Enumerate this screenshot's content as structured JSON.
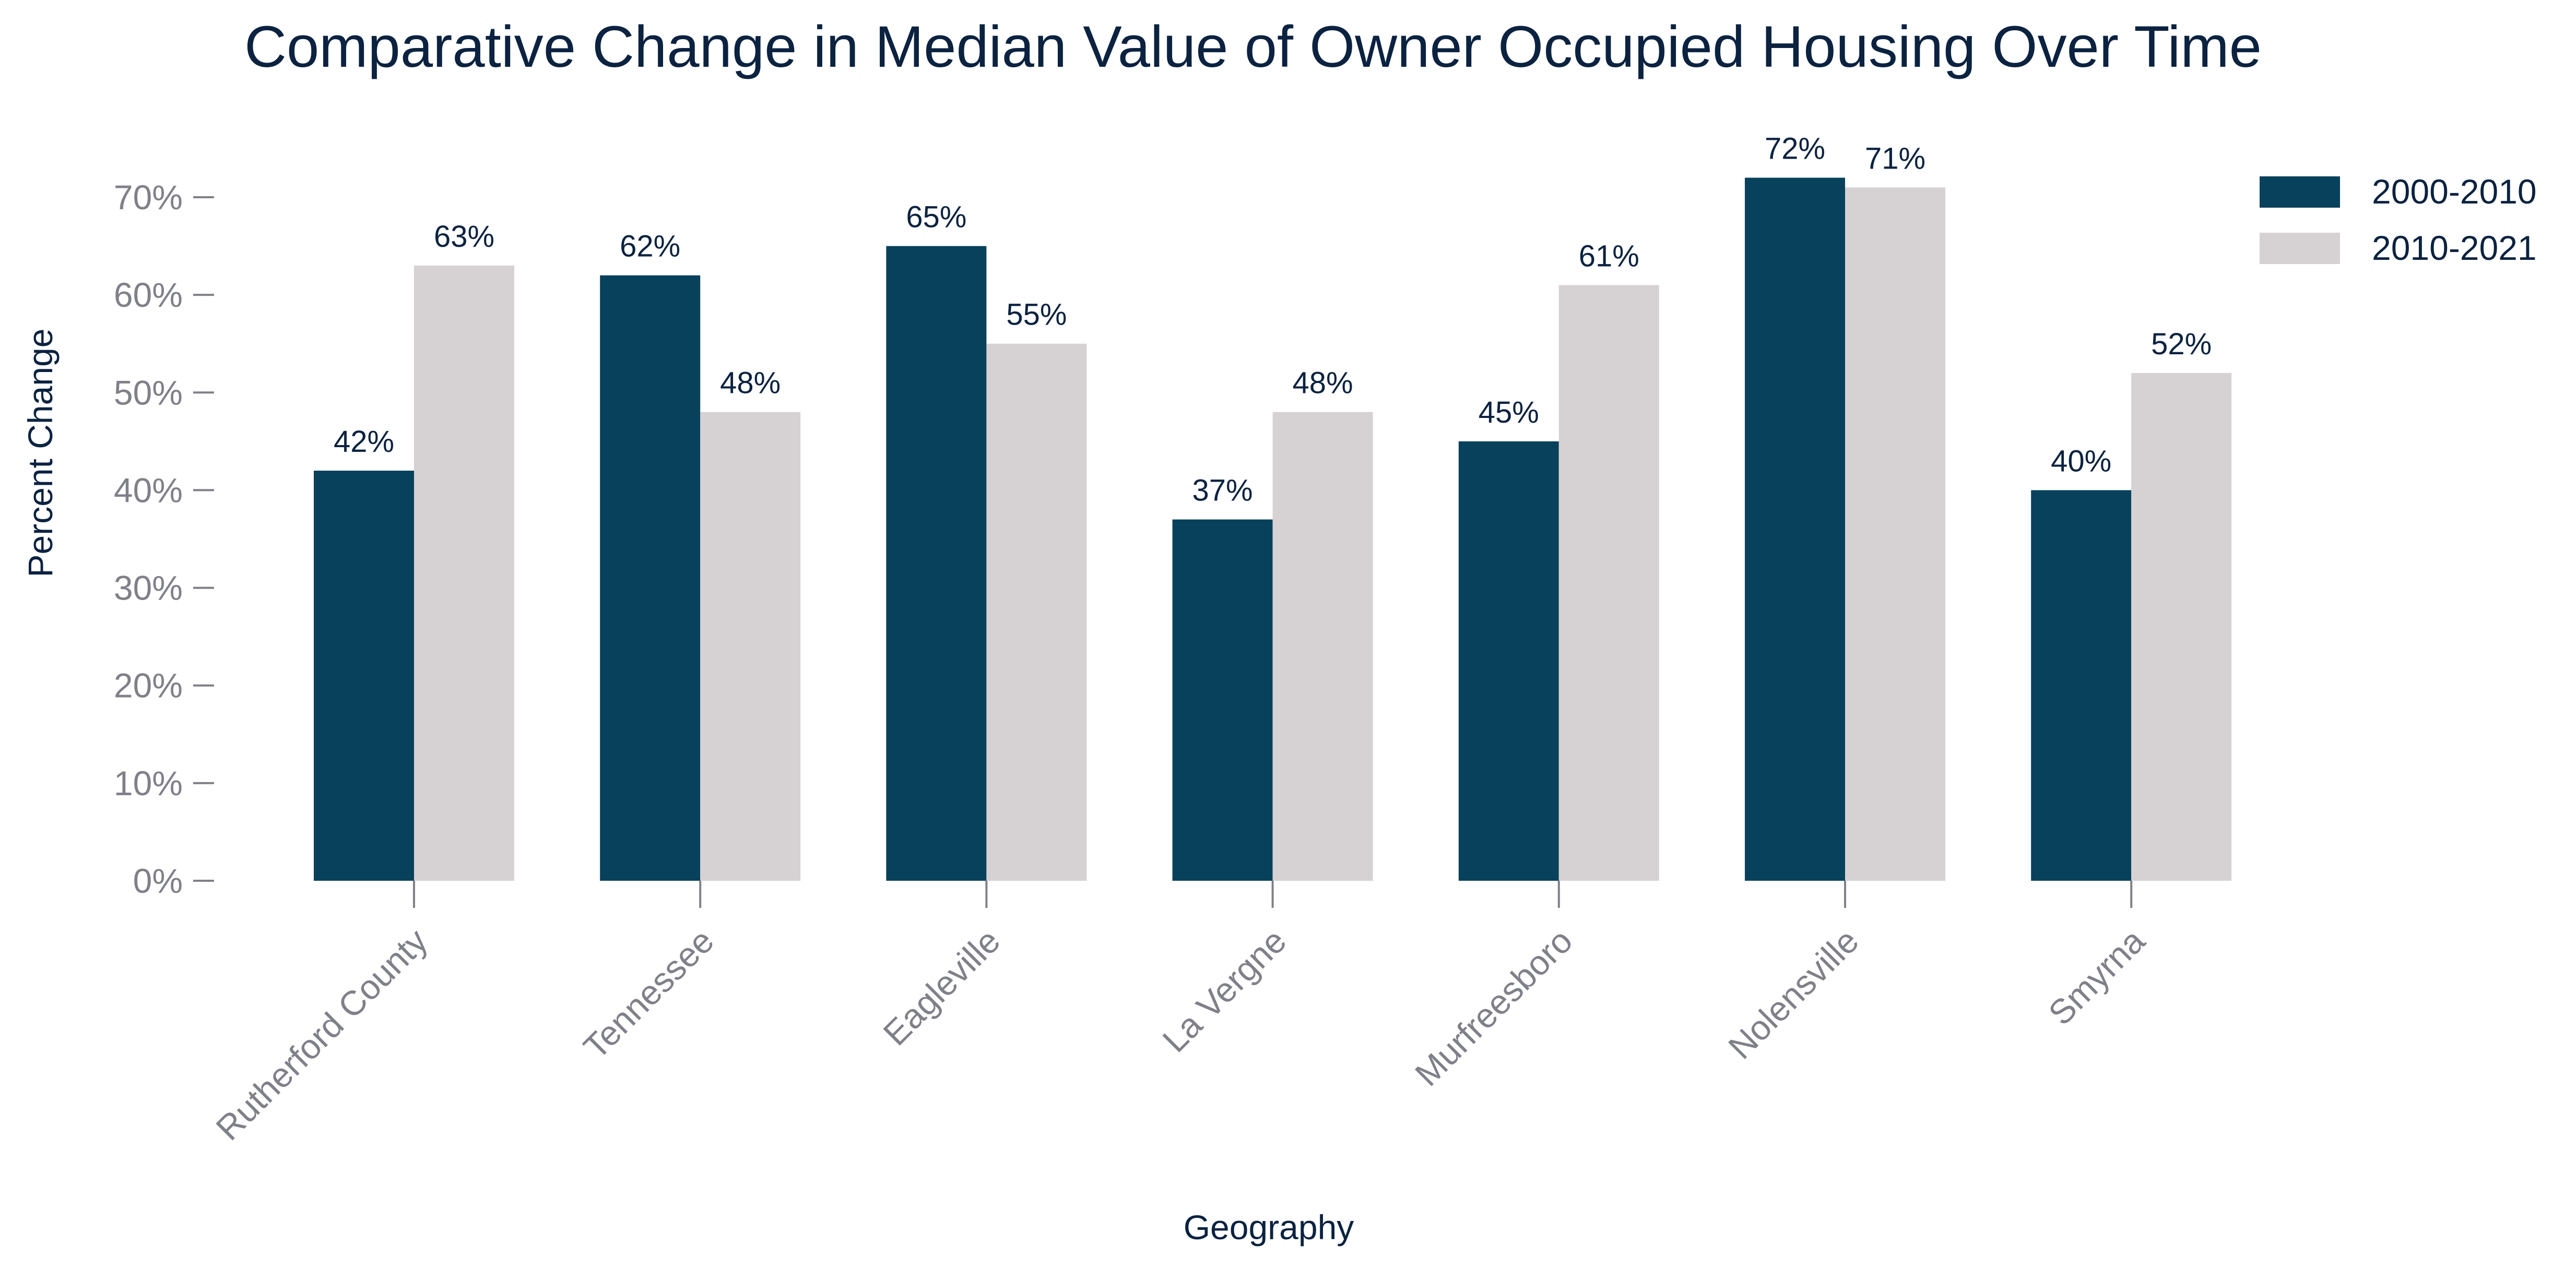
{
  "chart_data": {
    "type": "bar",
    "title": "Comparative Change in Median Value of Owner Occupied Housing Over Time",
    "xlabel": "Geography",
    "ylabel": "Percent Change",
    "ylim": [
      0,
      70
    ],
    "yticks": [
      0,
      10,
      20,
      30,
      40,
      50,
      60,
      70
    ],
    "ytick_format": "percent",
    "categories": [
      "Rutherford County",
      "Tennessee",
      "Eagleville",
      "La Vergne",
      "Murfreesboro",
      "Nolensville",
      "Smyrna"
    ],
    "series": [
      {
        "name": "2000-2010",
        "color": "#08415c",
        "values": [
          42,
          62,
          65,
          37,
          45,
          72,
          40
        ],
        "labels": [
          "42%",
          "62%",
          "65%",
          "37%",
          "45%",
          "72%",
          "40%"
        ]
      },
      {
        "name": "2010-2021",
        "color": "#d6d1d3",
        "values": [
          63,
          48,
          55,
          48,
          61,
          71,
          52
        ],
        "labels": [
          "63%",
          "48%",
          "55%",
          "48%",
          "61%",
          "71%",
          "52%"
        ]
      }
    ],
    "legend_position": "top-right",
    "grid": false,
    "text_color": "#0b2240",
    "tick_color": "#7f8088"
  }
}
